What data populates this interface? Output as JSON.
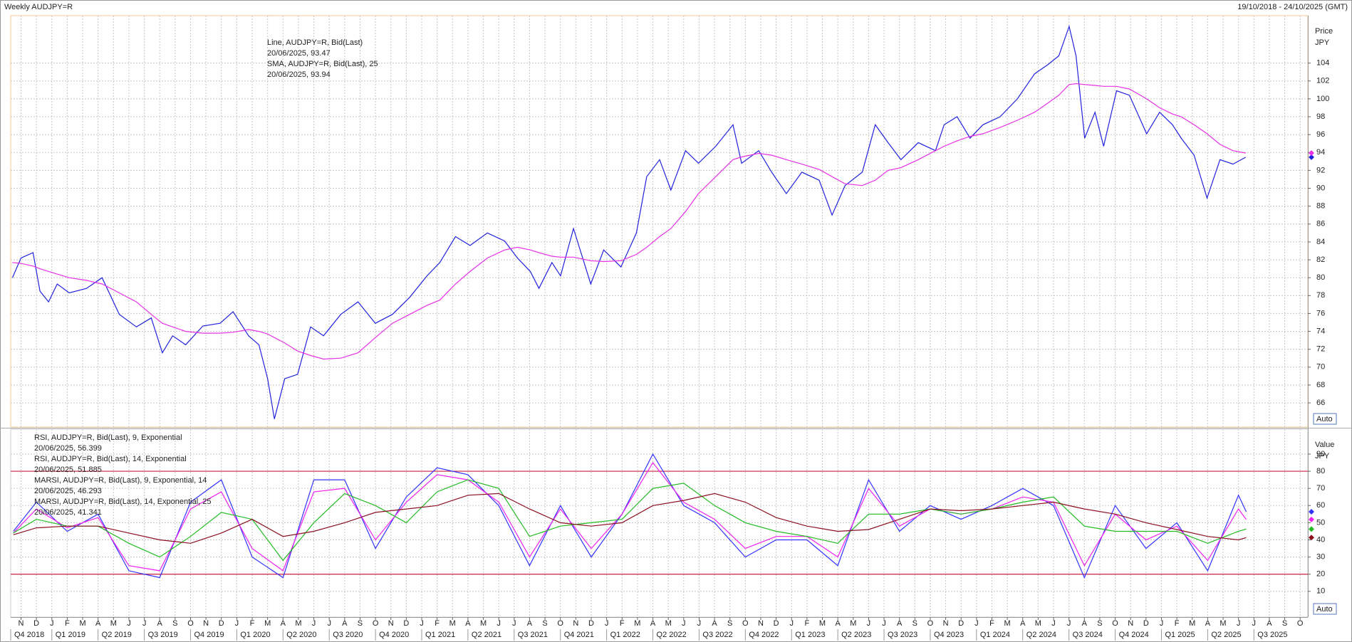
{
  "header": {
    "title": "Weekly AUDJPY=R",
    "range": "19/10/2018 - 24/10/2025 (GMT)"
  },
  "chart_data": [
    {
      "type": "line",
      "y_title": "Price",
      "y_unit": "JPY",
      "auto_button": "Auto",
      "grid": true,
      "xlim": [
        -0.67,
        83.5
      ],
      "ylim": [
        63.3,
        109.3
      ],
      "yticks": [
        66,
        68,
        70,
        72,
        74,
        76,
        78,
        80,
        82,
        84,
        86,
        88,
        90,
        92,
        94,
        96,
        98,
        100,
        102,
        104
      ],
      "x": [
        -0.56,
        0,
        0.78,
        1.23,
        1.79,
        2.35,
        3.13,
        4.25,
        5.26,
        6.38,
        7.49,
        8.45,
        9.17,
        9.84,
        10.68,
        11.8,
        12.92,
        13.76,
        14.77,
        15.44,
        16,
        16.44,
        17.11,
        17.95,
        18.79,
        19.63,
        20.75,
        21.87,
        22.99,
        24.1,
        25.22,
        26.34,
        27.18,
        28.19,
        29.14,
        30.26,
        31.38,
        32.21,
        33.05,
        33.61,
        34.45,
        35.01,
        35.85,
        36.97,
        37.81,
        38.93,
        39.93,
        40.6,
        41.44,
        42.17,
        43.12,
        43.96,
        45.08,
        46.2,
        46.76,
        47.87,
        48.71,
        49.66,
        50.67,
        51.79,
        52.63,
        53.47,
        54.59,
        55.43,
        56.26,
        57.1,
        58.22,
        59.34,
        59.9,
        60.74,
        61.58,
        62.42,
        63.53,
        64.65,
        65.77,
        66.61,
        67.34,
        68.01,
        68.46,
        69.02,
        69.69,
        70.25,
        71.09,
        71.92,
        73.04,
        73.88,
        74.72,
        75.28,
        76.12,
        76.96,
        77.8,
        78.64,
        79.47
      ],
      "series": [
        {
          "name": "Line, AUDJPY=R, Bid(Last)",
          "last_label": "20/06/2025, 93.47",
          "color": "#2222dd",
          "values": [
            80.0,
            82.2,
            82.8,
            78.5,
            77.3,
            79.3,
            78.3,
            78.8,
            80.0,
            75.9,
            74.5,
            75.5,
            71.6,
            73.5,
            72.5,
            74.6,
            74.9,
            76.2,
            73.5,
            72.5,
            68.7,
            64.2,
            68.7,
            69.2,
            74.5,
            73.5,
            75.9,
            77.3,
            74.9,
            75.9,
            77.8,
            80.2,
            81.7,
            84.6,
            83.6,
            85.0,
            84.1,
            82.2,
            80.7,
            78.8,
            81.7,
            80.2,
            85.5,
            79.3,
            83.1,
            81.2,
            85.0,
            91.3,
            93.2,
            89.8,
            94.2,
            92.8,
            94.7,
            97.1,
            92.8,
            94.2,
            91.8,
            89.4,
            91.8,
            90.9,
            87.0,
            90.3,
            91.8,
            97.1,
            95.1,
            93.2,
            95.1,
            94.2,
            97.1,
            98.0,
            95.6,
            97.1,
            98.0,
            100.0,
            102.8,
            103.8,
            104.8,
            108.1,
            104.8,
            95.6,
            98.5,
            94.7,
            100.9,
            100.4,
            96.1,
            98.5,
            97.1,
            95.6,
            93.7,
            88.9,
            93.2,
            92.7,
            93.47
          ]
        },
        {
          "name": "SMA, AUDJPY=R, Bid(Last),  25",
          "last_label": "20/06/2025, 93.94",
          "color": "#e632e6",
          "values": [
            81.7,
            81.6,
            81.3,
            81.0,
            80.7,
            80.4,
            80.0,
            79.7,
            79.3,
            78.3,
            77.3,
            75.9,
            74.9,
            74.5,
            74.0,
            73.8,
            73.8,
            73.9,
            74.2,
            74.0,
            73.7,
            73.3,
            72.7,
            71.8,
            71.3,
            70.9,
            71.0,
            71.6,
            73.3,
            74.9,
            75.9,
            76.9,
            77.5,
            79.3,
            80.7,
            82.2,
            83.1,
            83.4,
            83.1,
            82.8,
            82.4,
            82.3,
            82.3,
            81.9,
            81.8,
            81.9,
            82.6,
            83.4,
            84.6,
            85.5,
            87.4,
            89.4,
            91.3,
            93.2,
            93.5,
            93.9,
            93.7,
            93.2,
            92.7,
            92.1,
            91.3,
            90.5,
            90.3,
            90.9,
            92.0,
            92.3,
            93.2,
            94.2,
            94.7,
            95.3,
            95.8,
            96.1,
            96.8,
            97.6,
            98.5,
            99.5,
            100.4,
            101.6,
            101.7,
            101.6,
            101.5,
            101.4,
            101.4,
            101.1,
            100.0,
            99.0,
            98.3,
            98.0,
            97.1,
            96.1,
            94.9,
            94.2,
            93.94
          ]
        }
      ]
    },
    {
      "type": "line",
      "y_title": "Value",
      "y_unit": "JPY",
      "auto_button": "Auto",
      "grid": true,
      "levels": [
        80,
        20
      ],
      "level_color": "#cc2244",
      "xlim": [
        -0.67,
        83.5
      ],
      "ylim": [
        -5,
        104.5
      ],
      "yticks": [
        10,
        20,
        30,
        40,
        50,
        60,
        70,
        80,
        90
      ],
      "xticks": [
        {
          "value": 0,
          "label": "N"
        },
        {
          "value": 1,
          "label": "D"
        },
        {
          "value": 2,
          "label": "J"
        },
        {
          "value": 3,
          "label": "F"
        },
        {
          "value": 4,
          "label": "M"
        },
        {
          "value": 5,
          "label": "A"
        },
        {
          "value": 6,
          "label": "M"
        },
        {
          "value": 7,
          "label": "J"
        },
        {
          "value": 8,
          "label": "J"
        },
        {
          "value": 9,
          "label": "A"
        },
        {
          "value": 10,
          "label": "S"
        },
        {
          "value": 11,
          "label": "O"
        },
        {
          "value": 12,
          "label": "N"
        },
        {
          "value": 13,
          "label": "D"
        },
        {
          "value": 14,
          "label": "J"
        },
        {
          "value": 15,
          "label": "F"
        },
        {
          "value": 16,
          "label": "M"
        },
        {
          "value": 17,
          "label": "A"
        },
        {
          "value": 18,
          "label": "M"
        },
        {
          "value": 19,
          "label": "J"
        },
        {
          "value": 20,
          "label": "J"
        },
        {
          "value": 21,
          "label": "A"
        },
        {
          "value": 22,
          "label": "S"
        },
        {
          "value": 23,
          "label": "O"
        },
        {
          "value": 24,
          "label": "N"
        },
        {
          "value": 25,
          "label": "D"
        },
        {
          "value": 26,
          "label": "J"
        },
        {
          "value": 27,
          "label": "F"
        },
        {
          "value": 28,
          "label": "M"
        },
        {
          "value": 29,
          "label": "A"
        },
        {
          "value": 30,
          "label": "M"
        },
        {
          "value": 31,
          "label": "J"
        },
        {
          "value": 32,
          "label": "J"
        },
        {
          "value": 33,
          "label": "A"
        },
        {
          "value": 34,
          "label": "S"
        },
        {
          "value": 35,
          "label": "O"
        },
        {
          "value": 36,
          "label": "N"
        },
        {
          "value": 37,
          "label": "D"
        },
        {
          "value": 38,
          "label": "J"
        },
        {
          "value": 39,
          "label": "F"
        },
        {
          "value": 40,
          "label": "M"
        },
        {
          "value": 41,
          "label": "A"
        },
        {
          "value": 42,
          "label": "M"
        },
        {
          "value": 43,
          "label": "J"
        },
        {
          "value": 44,
          "label": "J"
        },
        {
          "value": 45,
          "label": "A"
        },
        {
          "value": 46,
          "label": "S"
        },
        {
          "value": 47,
          "label": "O"
        },
        {
          "value": 48,
          "label": "N"
        },
        {
          "value": 49,
          "label": "D"
        },
        {
          "value": 50,
          "label": "J"
        },
        {
          "value": 51,
          "label": "F"
        },
        {
          "value": 52,
          "label": "M"
        },
        {
          "value": 53,
          "label": "A"
        },
        {
          "value": 54,
          "label": "M"
        },
        {
          "value": 55,
          "label": "J"
        },
        {
          "value": 56,
          "label": "J"
        },
        {
          "value": 57,
          "label": "A"
        },
        {
          "value": 58,
          "label": "S"
        },
        {
          "value": 59,
          "label": "O"
        },
        {
          "value": 60,
          "label": "N"
        },
        {
          "value": 61,
          "label": "D"
        },
        {
          "value": 62,
          "label": "J"
        },
        {
          "value": 63,
          "label": "F"
        },
        {
          "value": 64,
          "label": "M"
        },
        {
          "value": 65,
          "label": "A"
        },
        {
          "value": 66,
          "label": "M"
        },
        {
          "value": 67,
          "label": "J"
        },
        {
          "value": 68,
          "label": "J"
        },
        {
          "value": 69,
          "label": "A"
        },
        {
          "value": 70,
          "label": "S"
        },
        {
          "value": 71,
          "label": "O"
        },
        {
          "value": 72,
          "label": "N"
        },
        {
          "value": 73,
          "label": "D"
        },
        {
          "value": 74,
          "label": "J"
        },
        {
          "value": 75,
          "label": "F"
        },
        {
          "value": 76,
          "label": "M"
        },
        {
          "value": 77,
          "label": "A"
        },
        {
          "value": 78,
          "label": "M"
        },
        {
          "value": 79,
          "label": "J"
        },
        {
          "value": 80,
          "label": "J"
        },
        {
          "value": 81,
          "label": "A"
        },
        {
          "value": 82,
          "label": "S"
        },
        {
          "value": 83,
          "label": "O"
        }
      ],
      "quarters": [
        {
          "value": -1,
          "label": "Q4 2018"
        },
        {
          "value": 2,
          "label": "Q1 2019"
        },
        {
          "value": 5,
          "label": "Q2 2019"
        },
        {
          "value": 8,
          "label": "Q3 2019"
        },
        {
          "value": 11,
          "label": "Q4 2019"
        },
        {
          "value": 14,
          "label": "Q1 2020"
        },
        {
          "value": 17,
          "label": "Q2 2020"
        },
        {
          "value": 20,
          "label": "Q3 2020"
        },
        {
          "value": 23,
          "label": "Q4 2020"
        },
        {
          "value": 26,
          "label": "Q1 2021"
        },
        {
          "value": 29,
          "label": "Q2 2021"
        },
        {
          "value": 32,
          "label": "Q3 2021"
        },
        {
          "value": 35,
          "label": "Q4 2021"
        },
        {
          "value": 38,
          "label": "Q1 2022"
        },
        {
          "value": 41,
          "label": "Q2 2022"
        },
        {
          "value": 44,
          "label": "Q3 2022"
        },
        {
          "value": 47,
          "label": "Q4 2022"
        },
        {
          "value": 50,
          "label": "Q1 2023"
        },
        {
          "value": 53,
          "label": "Q2 2023"
        },
        {
          "value": 56,
          "label": "Q3 2023"
        },
        {
          "value": 59,
          "label": "Q4 2023"
        },
        {
          "value": 62,
          "label": "Q1 2024"
        },
        {
          "value": 65,
          "label": "Q2 2024"
        },
        {
          "value": 68,
          "label": "Q3 2024"
        },
        {
          "value": 71,
          "label": "Q4 2024"
        },
        {
          "value": 74,
          "label": "Q1 2025"
        },
        {
          "value": 77,
          "label": "Q2 2025"
        },
        {
          "value": 80,
          "label": "Q3 2025"
        }
      ],
      "x": [
        -0.5,
        1,
        3,
        5,
        7,
        9,
        11,
        13,
        15,
        17,
        19,
        21,
        23,
        25,
        27,
        29,
        31,
        33,
        35,
        37,
        39,
        41,
        43,
        45,
        47,
        49,
        51,
        53,
        55,
        57,
        59,
        61,
        63,
        65,
        67,
        69,
        71,
        73,
        75,
        77,
        79,
        79.5
      ],
      "series": [
        {
          "name": "RSI, AUDJPY=R, Bid(Last),  9, Exponential",
          "last_label": "20/06/2025, 56.399",
          "color": "#3333ff",
          "values": [
            45,
            62,
            45,
            55,
            22,
            18,
            62,
            75,
            30,
            18,
            75,
            75,
            35,
            65,
            82,
            78,
            60,
            25,
            60,
            30,
            55,
            90,
            60,
            50,
            30,
            40,
            40,
            25,
            75,
            45,
            60,
            52,
            60,
            70,
            60,
            18,
            60,
            35,
            50,
            22,
            66,
            56.399
          ]
        },
        {
          "name": "RSI, AUDJPY=R, Bid(Last),  14, Exponential",
          "last_label": "20/06/2025, 51.885",
          "color": "#ee22ee",
          "values": [
            44,
            58,
            47,
            53,
            25,
            22,
            58,
            68,
            35,
            22,
            68,
            70,
            40,
            62,
            78,
            75,
            62,
            30,
            58,
            35,
            55,
            85,
            62,
            52,
            35,
            42,
            42,
            30,
            70,
            48,
            58,
            55,
            58,
            65,
            62,
            25,
            55,
            40,
            48,
            28,
            58,
            51.885
          ]
        },
        {
          "name": "MARSI, AUDJPY=R, Bid(Last),  9, Exponential, 14",
          "last_label": "20/06/2025, 46.293",
          "color": "#22bb22",
          "values": [
            44,
            52,
            48,
            48,
            38,
            30,
            42,
            56,
            52,
            28,
            50,
            67,
            60,
            50,
            68,
            75,
            70,
            42,
            48,
            50,
            52,
            70,
            73,
            60,
            50,
            45,
            42,
            38,
            55,
            55,
            58,
            55,
            58,
            62,
            65,
            48,
            45,
            45,
            45,
            38,
            45,
            46.293
          ]
        },
        {
          "name": "MARSI, AUDJPY=R, Bid(Last),  14, Exponential, 25",
          "last_label": "20/06/2025, 41.341",
          "color": "#8b1020",
          "values": [
            43,
            47,
            48,
            48,
            44,
            40,
            38,
            44,
            52,
            42,
            45,
            50,
            56,
            58,
            60,
            66,
            67,
            58,
            50,
            48,
            50,
            60,
            63,
            67,
            62,
            53,
            48,
            45,
            46,
            52,
            58,
            57,
            58,
            60,
            62,
            58,
            55,
            50,
            46,
            42,
            40,
            41.341
          ]
        }
      ]
    }
  ]
}
